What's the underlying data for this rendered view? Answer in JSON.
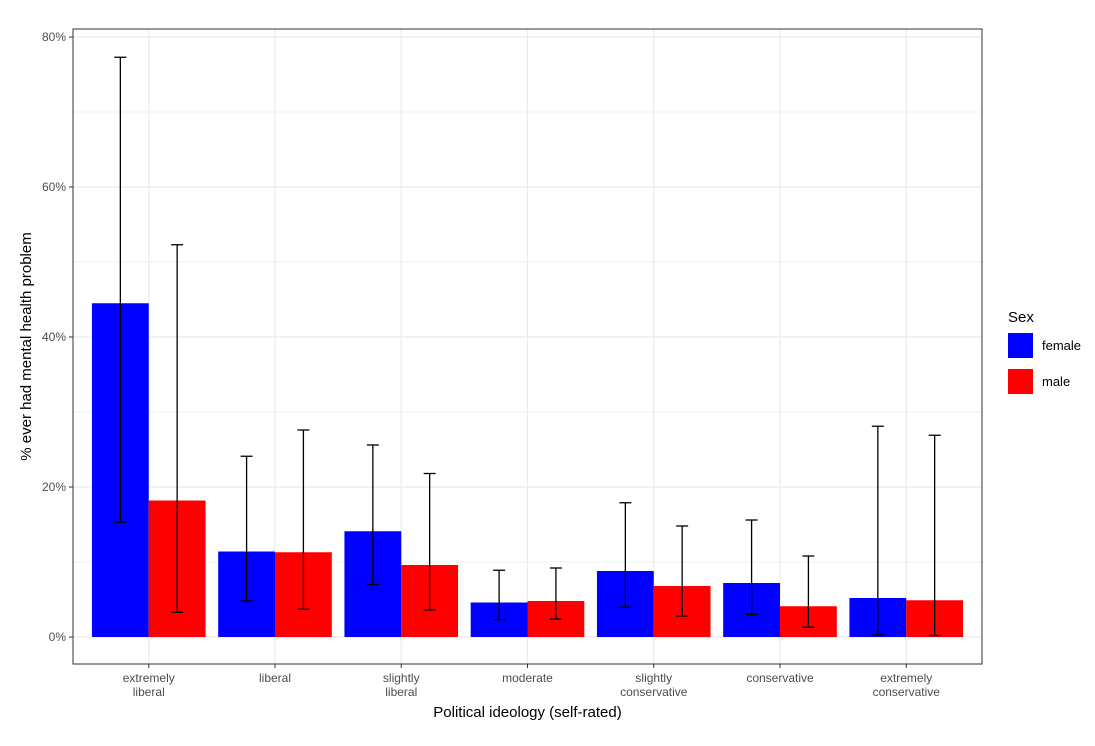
{
  "chart_data": {
    "type": "bar",
    "title": "",
    "xlabel": "Political ideology (self-rated)",
    "ylabel": "% ever had mental health problem",
    "ylim": [
      0,
      80
    ],
    "yticks": [
      0,
      20,
      40,
      60,
      80
    ],
    "ytick_labels": [
      "0%",
      "20%",
      "40%",
      "60%",
      "80%"
    ],
    "categories": [
      [
        "extremely",
        "liberal"
      ],
      [
        "liberal"
      ],
      [
        "slightly",
        "liberal"
      ],
      [
        "moderate"
      ],
      [
        "slightly",
        "conservative"
      ],
      [
        "conservative"
      ],
      [
        "extremely",
        "conservative"
      ]
    ],
    "series": [
      {
        "name": "female",
        "color": "#0000ff",
        "values": [
          44.5,
          11.4,
          14.1,
          4.6,
          8.8,
          7.2,
          5.2
        ],
        "error_low": [
          15.3,
          4.8,
          7.0,
          2.3,
          4.0,
          3.0,
          0.3
        ],
        "error_high": [
          77.3,
          24.1,
          25.6,
          8.9,
          17.9,
          15.6,
          28.1
        ]
      },
      {
        "name": "male",
        "color": "#ff0000",
        "values": [
          18.2,
          11.3,
          9.6,
          4.8,
          6.8,
          4.1,
          4.9
        ],
        "error_low": [
          3.3,
          3.7,
          3.6,
          2.4,
          2.8,
          1.3,
          0.2
        ],
        "error_high": [
          52.3,
          27.6,
          21.8,
          9.2,
          14.8,
          10.8,
          26.9
        ]
      }
    ],
    "legend": {
      "title": "Sex",
      "position": "right",
      "entries": [
        "female",
        "male"
      ]
    },
    "grid": true
  }
}
